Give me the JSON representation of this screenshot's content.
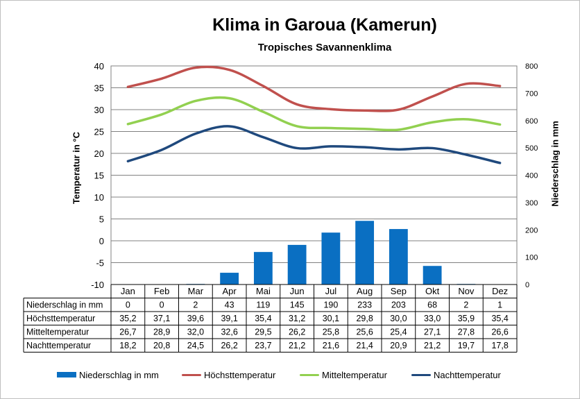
{
  "title": "Klima in Garoua (Kamerun)",
  "subtitle": "Tropisches Savannenklima",
  "colors": {
    "precip": "#0a6fc2",
    "max": "#c0504d",
    "mean": "#92d050",
    "min": "#1f497d",
    "grid": "#808080"
  },
  "chart_data": {
    "type": "bar+line",
    "title": "Klima in Garoua (Kamerun)",
    "subtitle": "Tropisches Savannenklima",
    "ylabel_left": "Temperatur in °C",
    "ylabel_right": "Niederschlag in mm",
    "ylim_left": [
      -10,
      40
    ],
    "yticks_left": [
      "40",
      "35",
      "30",
      "25",
      "20",
      "15",
      "10",
      "5",
      "0",
      "-5",
      "-10"
    ],
    "ylim_right": [
      0,
      800
    ],
    "yticks_right": [
      "800",
      "700",
      "600",
      "500",
      "400",
      "300",
      "200",
      "100",
      "0"
    ],
    "grid": true,
    "categories": [
      "Jan",
      "Feb",
      "Mar",
      "Apr",
      "Mai",
      "Jun",
      "Jul",
      "Aug",
      "Sep",
      "Okt",
      "Nov",
      "Dez"
    ],
    "series": [
      {
        "name": "Niederschlag in mm",
        "type": "bar",
        "axis": "right",
        "values": [
          0,
          0,
          2,
          43,
          119,
          145,
          190,
          233,
          203,
          68,
          2,
          1
        ],
        "labels": [
          "0",
          "0",
          "2",
          "43",
          "119",
          "145",
          "190",
          "233",
          "203",
          "68",
          "2",
          "1"
        ]
      },
      {
        "name": "Höchsttemperatur",
        "type": "line",
        "axis": "left",
        "values": [
          35.2,
          37.1,
          39.6,
          39.1,
          35.4,
          31.2,
          30.1,
          29.8,
          30.0,
          33.0,
          35.9,
          35.4
        ],
        "labels": [
          "35,2",
          "37,1",
          "39,6",
          "39,1",
          "35,4",
          "31,2",
          "30,1",
          "29,8",
          "30,0",
          "33,0",
          "35,9",
          "35,4"
        ]
      },
      {
        "name": "Mitteltemperatur",
        "type": "line",
        "axis": "left",
        "values": [
          26.7,
          28.9,
          32.0,
          32.6,
          29.5,
          26.2,
          25.8,
          25.6,
          25.4,
          27.1,
          27.8,
          26.6
        ],
        "labels": [
          "26,7",
          "28,9",
          "32,0",
          "32,6",
          "29,5",
          "26,2",
          "25,8",
          "25,6",
          "25,4",
          "27,1",
          "27,8",
          "26,6"
        ]
      },
      {
        "name": "Nachttemperatur",
        "type": "line",
        "axis": "left",
        "values": [
          18.2,
          20.8,
          24.5,
          26.2,
          23.7,
          21.2,
          21.6,
          21.4,
          20.9,
          21.2,
          19.7,
          17.8
        ],
        "labels": [
          "18,2",
          "20,8",
          "24,5",
          "26,2",
          "23,7",
          "21,2",
          "21,6",
          "21,4",
          "20,9",
          "21,2",
          "19,7",
          "17,8"
        ]
      }
    ],
    "legend": [
      "Niederschlag in mm",
      "Höchsttemperatur",
      "Mitteltemperatur",
      "Nachttemperatur"
    ],
    "legend_position": "bottom"
  }
}
